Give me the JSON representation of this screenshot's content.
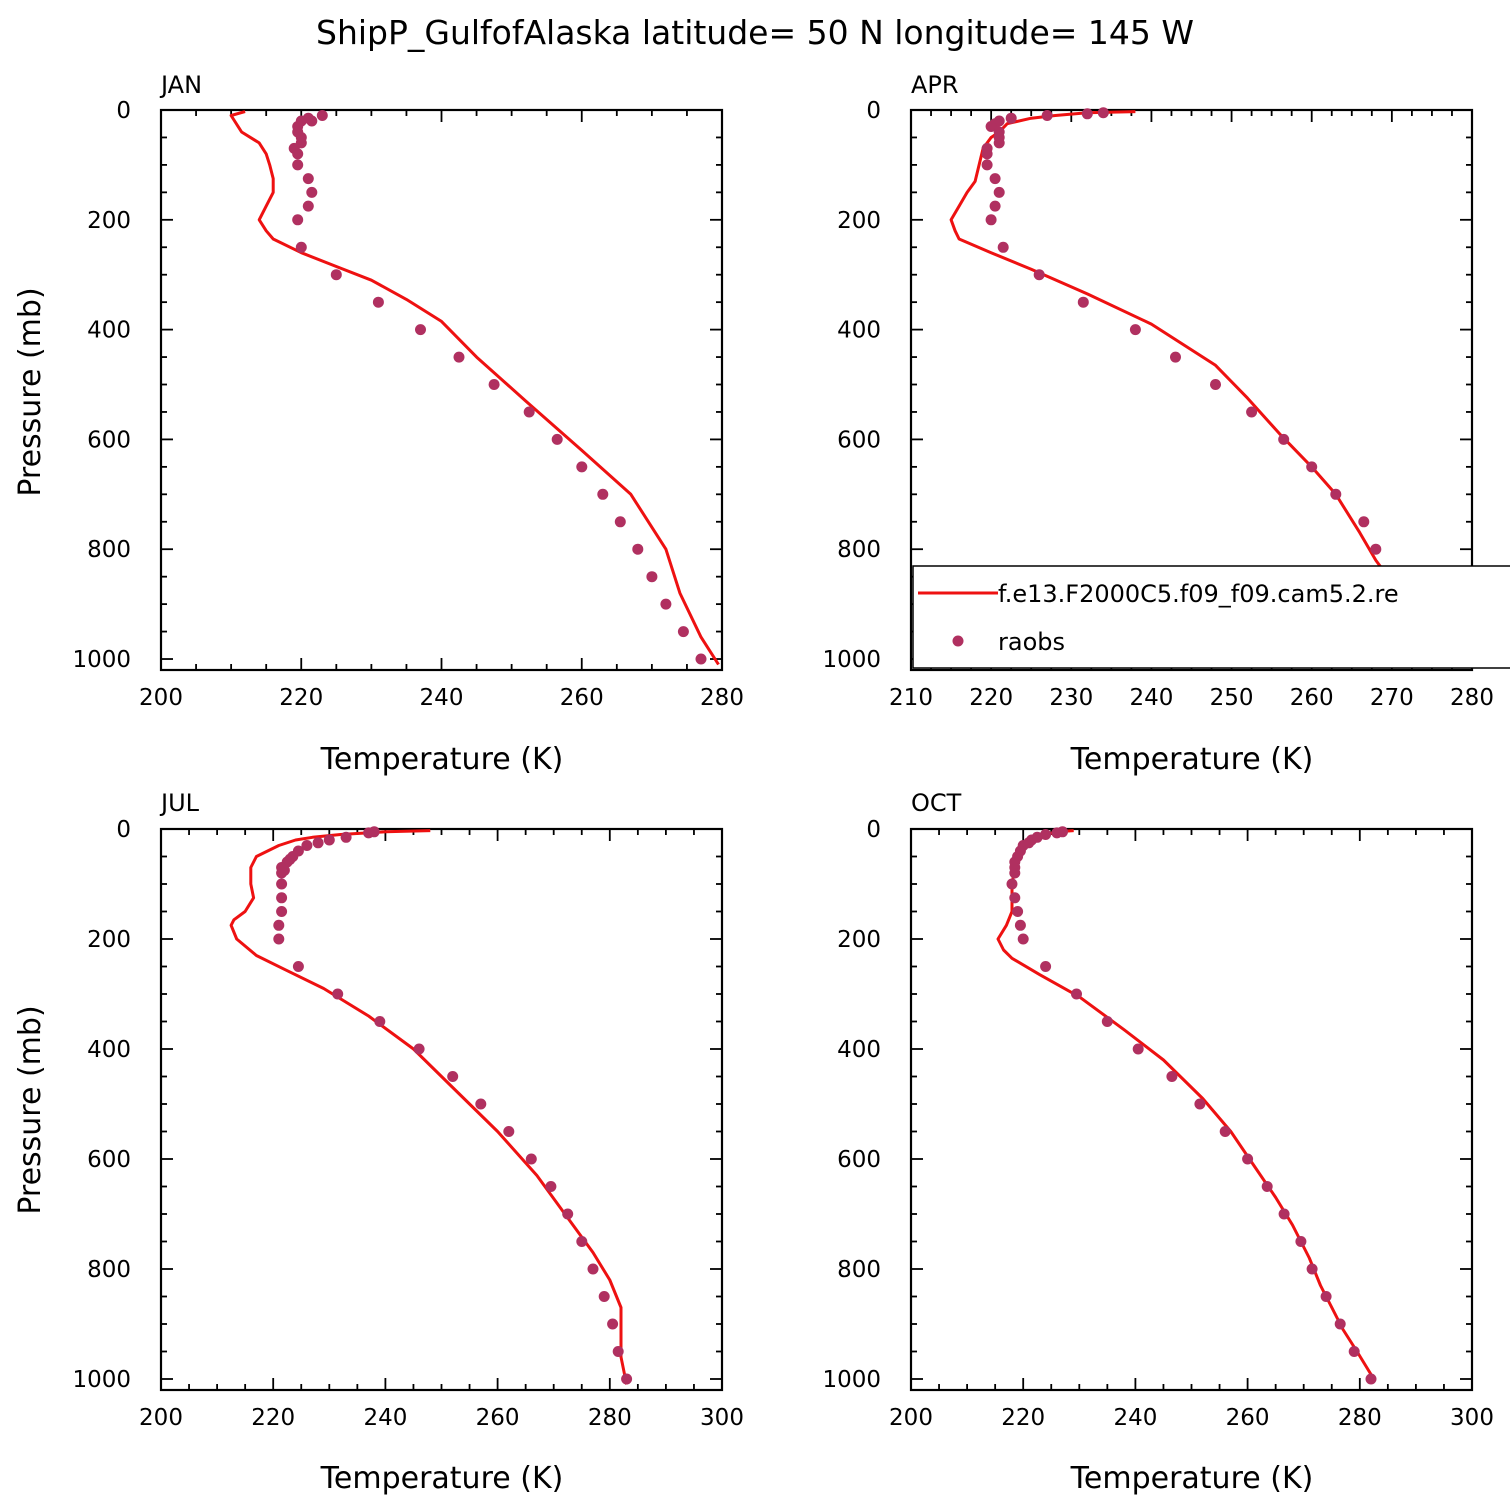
{
  "title": "ShipP_GulfofAlaska  latitude= 50 N longitude= 145 W",
  "colors": {
    "model": "#ee1111",
    "obs": "#b03060",
    "axis": "#000000"
  },
  "legend": {
    "model_label": "f.e13.F2000C5.f09_f09.cam5.2.re",
    "obs_label": "raobs"
  },
  "chart_data": [
    {
      "type": "line",
      "panel": "JAN",
      "xlabel": "Temperature (K)",
      "ylabel": "Pressure (mb)",
      "xlim": [
        200,
        280
      ],
      "xticks": [
        200,
        220,
        240,
        260,
        280
      ],
      "ylim": [
        0,
        1020
      ],
      "yticks": [
        0,
        200,
        400,
        600,
        800,
        1000
      ],
      "y_reversed": true,
      "series": [
        {
          "kind": "line",
          "values": [
            [
              212,
              3
            ],
            [
              210,
              10
            ],
            [
              210.5,
              20
            ],
            [
              211.5,
              40
            ],
            [
              214,
              60
            ],
            [
              215,
              80
            ],
            [
              215.5,
              100
            ],
            [
              216,
              125
            ],
            [
              216,
              150
            ],
            [
              215,
              175
            ],
            [
              214,
              200
            ],
            [
              215,
              220
            ],
            [
              216,
              235
            ],
            [
              220,
              260
            ],
            [
              225,
              285
            ],
            [
              230,
              310
            ],
            [
              235,
              345
            ],
            [
              240,
              385
            ],
            [
              245,
              450
            ],
            [
              252,
              530
            ],
            [
              260,
              620
            ],
            [
              267,
              700
            ],
            [
              272,
              800
            ],
            [
              274,
              880
            ],
            [
              277,
              960
            ],
            [
              279.5,
              1010
            ]
          ]
        },
        {
          "kind": "scatter",
          "values": [
            [
              223,
              10
            ],
            [
              221,
              15
            ],
            [
              221.5,
              20
            ],
            [
              220,
              20
            ],
            [
              219.5,
              30
            ],
            [
              219.5,
              40
            ],
            [
              220,
              50
            ],
            [
              220,
              60
            ],
            [
              219,
              70
            ],
            [
              219.5,
              80
            ],
            [
              219.5,
              100
            ],
            [
              221,
              125
            ],
            [
              221.5,
              150
            ],
            [
              221,
              175
            ],
            [
              219.5,
              200
            ],
            [
              220,
              250
            ],
            [
              225,
              300
            ],
            [
              231,
              350
            ],
            [
              237,
              400
            ],
            [
              242.5,
              450
            ],
            [
              247.5,
              500
            ],
            [
              252.5,
              550
            ],
            [
              256.5,
              600
            ],
            [
              260,
              650
            ],
            [
              263,
              700
            ],
            [
              265.5,
              750
            ],
            [
              268,
              800
            ],
            [
              270,
              850
            ],
            [
              272,
              900
            ],
            [
              274.5,
              950
            ],
            [
              277,
              1000
            ]
          ]
        }
      ]
    },
    {
      "type": "line",
      "panel": "APR",
      "xlabel": "Temperature (K)",
      "ylabel": "",
      "xlim": [
        210,
        280
      ],
      "xticks": [
        210,
        220,
        230,
        240,
        250,
        260,
        270,
        280
      ],
      "ylim": [
        0,
        1020
      ],
      "yticks": [
        0,
        200,
        400,
        600,
        800,
        1000
      ],
      "y_reversed": true,
      "series": [
        {
          "kind": "line",
          "values": [
            [
              238,
              3
            ],
            [
              232,
              5
            ],
            [
              228,
              10
            ],
            [
              225,
              15
            ],
            [
              222,
              25
            ],
            [
              221,
              40
            ],
            [
              220,
              50
            ],
            [
              219,
              70
            ],
            [
              218.5,
              100
            ],
            [
              218,
              130
            ],
            [
              217,
              150
            ],
            [
              216,
              175
            ],
            [
              215,
              200
            ],
            [
              215.5,
              220
            ],
            [
              216,
              235
            ],
            [
              220,
              260
            ],
            [
              225,
              290
            ],
            [
              232,
              335
            ],
            [
              240,
              390
            ],
            [
              248,
              465
            ],
            [
              252,
              525
            ],
            [
              256,
              590
            ],
            [
              260,
              650
            ],
            [
              263,
              700
            ],
            [
              266,
              770
            ],
            [
              268,
              820
            ],
            [
              271,
              880
            ],
            [
              274,
              940
            ],
            [
              277.5,
              1000
            ]
          ]
        },
        {
          "kind": "scatter",
          "values": [
            [
              234,
              5
            ],
            [
              232,
              7
            ],
            [
              227,
              10
            ],
            [
              222.5,
              15
            ],
            [
              221,
              20
            ],
            [
              220.5,
              25
            ],
            [
              220,
              30
            ],
            [
              221,
              40
            ],
            [
              221,
              50
            ],
            [
              221,
              60
            ],
            [
              219.5,
              70
            ],
            [
              219.5,
              80
            ],
            [
              219.5,
              100
            ],
            [
              220.5,
              125
            ],
            [
              221,
              150
            ],
            [
              220.5,
              175
            ],
            [
              220,
              200
            ],
            [
              221.5,
              250
            ],
            [
              226,
              300
            ],
            [
              231.5,
              350
            ],
            [
              238,
              400
            ],
            [
              243,
              450
            ],
            [
              248,
              500
            ],
            [
              252.5,
              550
            ],
            [
              256.5,
              600
            ],
            [
              260,
              650
            ],
            [
              263,
              700
            ],
            [
              266.5,
              750
            ],
            [
              268,
              800
            ],
            [
              270,
              850
            ],
            [
              272,
              900
            ],
            [
              274.5,
              950
            ],
            [
              277.5,
              1000
            ]
          ]
        }
      ]
    },
    {
      "type": "line",
      "panel": "JUL",
      "xlabel": "Temperature (K)",
      "ylabel": "Pressure (mb)",
      "xlim": [
        200,
        300
      ],
      "xticks": [
        200,
        220,
        240,
        260,
        280,
        300
      ],
      "ylim": [
        0,
        1020
      ],
      "yticks": [
        0,
        200,
        400,
        600,
        800,
        1000
      ],
      "y_reversed": true,
      "series": [
        {
          "kind": "line",
          "values": [
            [
              248,
              3
            ],
            [
              240,
              5
            ],
            [
              232,
              10
            ],
            [
              227,
              15
            ],
            [
              224,
              20
            ],
            [
              221,
              30
            ],
            [
              219,
              40
            ],
            [
              217,
              50
            ],
            [
              216,
              70
            ],
            [
              216,
              100
            ],
            [
              216.5,
              125
            ],
            [
              215,
              150
            ],
            [
              213,
              165
            ],
            [
              212.5,
              175
            ],
            [
              213.5,
              200
            ],
            [
              217,
              230
            ],
            [
              222,
              255
            ],
            [
              229,
              290
            ],
            [
              237,
              340
            ],
            [
              245,
              400
            ],
            [
              252,
              470
            ],
            [
              260,
              550
            ],
            [
              267,
              630
            ],
            [
              272,
              700
            ],
            [
              277,
              770
            ],
            [
              280,
              820
            ],
            [
              282,
              870
            ],
            [
              282,
              920
            ],
            [
              282,
              960
            ],
            [
              283,
              1010
            ]
          ]
        },
        {
          "kind": "scatter",
          "values": [
            [
              238,
              5
            ],
            [
              237,
              7
            ],
            [
              233,
              15
            ],
            [
              230,
              20
            ],
            [
              228,
              25
            ],
            [
              226,
              30
            ],
            [
              224.5,
              40
            ],
            [
              223.5,
              50
            ],
            [
              223,
              55
            ],
            [
              222.5,
              60
            ],
            [
              221.5,
              70
            ],
            [
              222,
              75
            ],
            [
              221.5,
              80
            ],
            [
              221.5,
              100
            ],
            [
              221.5,
              125
            ],
            [
              221.5,
              150
            ],
            [
              221,
              175
            ],
            [
              221,
              200
            ],
            [
              224.5,
              250
            ],
            [
              231.5,
              300
            ],
            [
              239,
              350
            ],
            [
              246,
              400
            ],
            [
              252,
              450
            ],
            [
              257,
              500
            ],
            [
              262,
              550
            ],
            [
              266,
              600
            ],
            [
              269.5,
              650
            ],
            [
              272.5,
              700
            ],
            [
              275,
              750
            ],
            [
              277,
              800
            ],
            [
              279,
              850
            ],
            [
              280.5,
              900
            ],
            [
              281.5,
              950
            ],
            [
              283,
              1000
            ]
          ]
        }
      ]
    },
    {
      "type": "line",
      "panel": "OCT",
      "xlabel": "Temperature (K)",
      "ylabel": "",
      "xlim": [
        200,
        300
      ],
      "xticks": [
        200,
        220,
        240,
        260,
        280,
        300
      ],
      "ylim": [
        0,
        1020
      ],
      "yticks": [
        0,
        200,
        400,
        600,
        800,
        1000
      ],
      "y_reversed": true,
      "series": [
        {
          "kind": "line",
          "values": [
            [
              229,
              3
            ],
            [
              226,
              5
            ],
            [
              224,
              10
            ],
            [
              222,
              15
            ],
            [
              220.5,
              25
            ],
            [
              219.5,
              40
            ],
            [
              219,
              50
            ],
            [
              218.5,
              70
            ],
            [
              218,
              100
            ],
            [
              218,
              125
            ],
            [
              218,
              150
            ],
            [
              217,
              175
            ],
            [
              215.5,
              200
            ],
            [
              216.5,
              220
            ],
            [
              218,
              235
            ],
            [
              223,
              265
            ],
            [
              230,
              305
            ],
            [
              238,
              365
            ],
            [
              245,
              420
            ],
            [
              252,
              490
            ],
            [
              257,
              550
            ],
            [
              261,
              610
            ],
            [
              265,
              670
            ],
            [
              268,
              720
            ],
            [
              271,
              780
            ],
            [
              273,
              830
            ],
            [
              275,
              870
            ],
            [
              277,
              910
            ],
            [
              279.5,
              950
            ],
            [
              282.5,
              1000
            ]
          ]
        },
        {
          "kind": "scatter",
          "values": [
            [
              227,
              5
            ],
            [
              226,
              7
            ],
            [
              224,
              10
            ],
            [
              222.5,
              15
            ],
            [
              221.5,
              20
            ],
            [
              221,
              25
            ],
            [
              220,
              30
            ],
            [
              219.5,
              40
            ],
            [
              219,
              50
            ],
            [
              218.5,
              60
            ],
            [
              218.5,
              70
            ],
            [
              218.5,
              80
            ],
            [
              218,
              100
            ],
            [
              218.5,
              125
            ],
            [
              219,
              150
            ],
            [
              219.5,
              175
            ],
            [
              220,
              200
            ],
            [
              224,
              250
            ],
            [
              229.5,
              300
            ],
            [
              235,
              350
            ],
            [
              240.5,
              400
            ],
            [
              246.5,
              450
            ],
            [
              251.5,
              500
            ],
            [
              256,
              550
            ],
            [
              260,
              600
            ],
            [
              263.5,
              650
            ],
            [
              266.5,
              700
            ],
            [
              269.5,
              750
            ],
            [
              271.5,
              800
            ],
            [
              274,
              850
            ],
            [
              276.5,
              900
            ],
            [
              279,
              950
            ],
            [
              282,
              1000
            ]
          ]
        }
      ]
    }
  ]
}
